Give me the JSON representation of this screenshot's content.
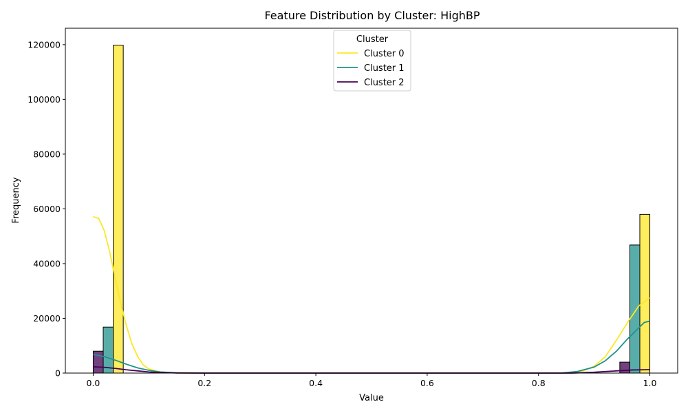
{
  "chart_data": {
    "type": "bar",
    "title": "Feature Distribution by Cluster: HighBP",
    "xlabel": "Value",
    "ylabel": "Frequency",
    "xlim": [
      -0.05,
      1.05
    ],
    "ylim": [
      0,
      126000
    ],
    "xticks": [
      0.0,
      0.2,
      0.4,
      0.6,
      0.8,
      1.0
    ],
    "xtick_labels": [
      "0.0",
      "0.2",
      "0.4",
      "0.6",
      "0.8",
      "1.0"
    ],
    "yticks": [
      0,
      20000,
      40000,
      60000,
      80000,
      100000,
      120000
    ],
    "ytick_labels": [
      "0",
      "20000",
      "40000",
      "60000",
      "80000",
      "100000",
      "120000"
    ],
    "legend": {
      "title": "Cluster",
      "placement": "top-center",
      "entries": [
        "Cluster 0",
        "Cluster 1",
        "Cluster 2"
      ]
    },
    "grid": false,
    "series": [
      {
        "name": "Cluster 0",
        "color": "#fde725",
        "bars": [
          {
            "x0": 0.036,
            "x1": 0.054,
            "value": 119800
          },
          {
            "x0": 0.982,
            "x1": 1.0,
            "value": 58000
          }
        ],
        "kde": [
          [
            0.0,
            57200
          ],
          [
            0.01,
            56500
          ],
          [
            0.02,
            52000
          ],
          [
            0.03,
            44000
          ],
          [
            0.04,
            34000
          ],
          [
            0.05,
            25000
          ],
          [
            0.06,
            17000
          ],
          [
            0.07,
            10500
          ],
          [
            0.08,
            6000
          ],
          [
            0.09,
            3000
          ],
          [
            0.1,
            1500
          ],
          [
            0.12,
            400
          ],
          [
            0.15,
            0
          ],
          [
            0.85,
            0
          ],
          [
            0.88,
            800
          ],
          [
            0.9,
            2500
          ],
          [
            0.92,
            6000
          ],
          [
            0.94,
            12000
          ],
          [
            0.96,
            18500
          ],
          [
            0.98,
            24500
          ],
          [
            1.0,
            27500
          ]
        ]
      },
      {
        "name": "Cluster 1",
        "color": "#21918c",
        "bars": [
          {
            "x0": 0.018,
            "x1": 0.036,
            "value": 16800
          },
          {
            "x0": 0.964,
            "x1": 0.982,
            "value": 46800
          }
        ],
        "kde": [
          [
            0.0,
            6800
          ],
          [
            0.02,
            6000
          ],
          [
            0.04,
            4700
          ],
          [
            0.06,
            3200
          ],
          [
            0.08,
            1900
          ],
          [
            0.1,
            1000
          ],
          [
            0.12,
            400
          ],
          [
            0.15,
            100
          ],
          [
            0.2,
            0
          ],
          [
            0.84,
            0
          ],
          [
            0.87,
            600
          ],
          [
            0.9,
            2200
          ],
          [
            0.92,
            4500
          ],
          [
            0.94,
            8000
          ],
          [
            0.96,
            12500
          ],
          [
            0.98,
            16500
          ],
          [
            0.99,
            18500
          ],
          [
            1.0,
            19000
          ]
        ]
      },
      {
        "name": "Cluster 2",
        "color": "#440154",
        "bars": [
          {
            "x0": 0.0,
            "x1": 0.018,
            "value": 8000
          },
          {
            "x0": 0.946,
            "x1": 0.964,
            "value": 4000
          }
        ],
        "kde": [
          [
            0.0,
            2300
          ],
          [
            0.02,
            2100
          ],
          [
            0.04,
            1700
          ],
          [
            0.06,
            1200
          ],
          [
            0.08,
            800
          ],
          [
            0.1,
            400
          ],
          [
            0.12,
            200
          ],
          [
            0.15,
            50
          ],
          [
            0.2,
            0
          ],
          [
            0.86,
            0
          ],
          [
            0.9,
            300
          ],
          [
            0.94,
            800
          ],
          [
            0.97,
            1150
          ],
          [
            1.0,
            1250
          ]
        ]
      }
    ]
  }
}
